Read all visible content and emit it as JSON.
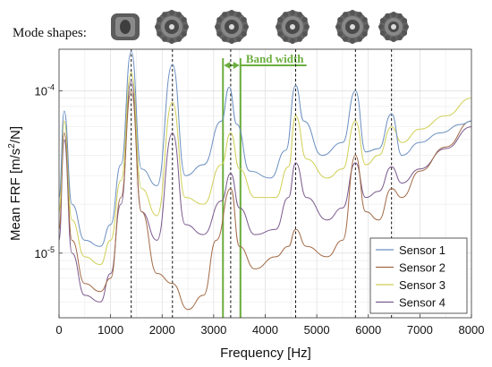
{
  "chart_data": {
    "type": "line",
    "mode_shapes_label": "Mode shapes:",
    "xlabel": "Frequency [Hz]",
    "ylabel_main": "Mean FRF [m/s",
    "ylabel_sup": "2",
    "ylabel_tail": "/N]",
    "xlim": [
      0,
      8000
    ],
    "ylim": [
      4e-06,
      0.00018
    ],
    "yscale": "log",
    "grid": true,
    "legend_position": "lower-right",
    "x_ticks": [
      0,
      1000,
      2000,
      3000,
      4000,
      5000,
      6000,
      7000,
      8000
    ],
    "x_tick_labels": [
      "0",
      "1000",
      "2000",
      "3000",
      "4000",
      "5000",
      "6000",
      "7000",
      "8000"
    ],
    "y_tick_labels": [
      {
        "value": 0.0001,
        "base": "10",
        "exp": "-4"
      },
      {
        "value": 1e-05,
        "base": "10",
        "exp": "-5"
      }
    ],
    "mode_frequencies": [
      1400,
      2200,
      3330,
      4590,
      5750,
      6450
    ],
    "band": {
      "label": "Band width",
      "low": 3180,
      "high": 3520
    },
    "colors": {
      "sensor1": "#6b8fc0",
      "sensor2": "#a26a46",
      "sensor3": "#cfcf56",
      "sensor4": "#7b5a8e",
      "band": "#6cae3e"
    },
    "series": [
      {
        "name": "Sensor 1",
        "color": "#6b8fc0",
        "points": [
          [
            0,
            2.2e-05
          ],
          [
            100,
            7.5e-05
          ],
          [
            250,
            2e-05
          ],
          [
            500,
            1.2e-05
          ],
          [
            800,
            1.1e-05
          ],
          [
            1000,
            1.5e-05
          ],
          [
            1200,
            3.5e-05
          ],
          [
            1400,
            0.000175
          ],
          [
            1600,
            3.3e-05
          ],
          [
            1900,
            2.6e-05
          ],
          [
            2200,
            0.000145
          ],
          [
            2450,
            3e-05
          ],
          [
            2800,
            3.5e-05
          ],
          [
            3150,
            6.5e-05
          ],
          [
            3300,
            0.000105
          ],
          [
            3450,
            6.2e-05
          ],
          [
            3700,
            3.2e-05
          ],
          [
            4100,
            2.9e-05
          ],
          [
            4400,
            4.3e-05
          ],
          [
            4590,
            0.000108
          ],
          [
            4750,
            6.5e-05
          ],
          [
            5100,
            4e-05
          ],
          [
            5500,
            4.8e-05
          ],
          [
            5750,
            0.0001
          ],
          [
            5950,
            4.2e-05
          ],
          [
            6200,
            4.4e-05
          ],
          [
            6450,
            7.2e-05
          ],
          [
            6650,
            4e-05
          ],
          [
            7000,
            4.8e-05
          ],
          [
            7400,
            5.5e-05
          ],
          [
            7800,
            6.2e-05
          ],
          [
            8000,
            6.5e-05
          ]
        ]
      },
      {
        "name": "Sensor 2",
        "color": "#a26a46",
        "points": [
          [
            0,
            1.4e-05
          ],
          [
            100,
            5.5e-05
          ],
          [
            250,
            1.2e-05
          ],
          [
            500,
            6.5e-06
          ],
          [
            800,
            5.8e-06
          ],
          [
            1000,
            7e-06
          ],
          [
            1200,
            2.2e-05
          ],
          [
            1400,
            0.0001
          ],
          [
            1600,
            1.8e-05
          ],
          [
            1900,
            7.5e-06
          ],
          [
            2200,
            6.5e-06
          ],
          [
            2500,
            4.5e-06
          ],
          [
            2800,
            5.5e-06
          ],
          [
            3050,
            1.2e-05
          ],
          [
            3330,
            2.5e-05
          ],
          [
            3500,
            1.1e-05
          ],
          [
            3800,
            8e-06
          ],
          [
            4200,
            9.5e-06
          ],
          [
            4450,
            1.1e-05
          ],
          [
            4590,
            1.4e-05
          ],
          [
            4800,
            1.1e-05
          ],
          [
            5200,
            9.5e-06
          ],
          [
            5500,
            1.2e-05
          ],
          [
            5750,
            4e-05
          ],
          [
            5950,
            1.8e-05
          ],
          [
            6200,
            1.6e-05
          ],
          [
            6450,
            2.5e-05
          ],
          [
            6650,
            2.2e-05
          ],
          [
            7000,
            3.2e-05
          ],
          [
            7500,
            4.5e-05
          ],
          [
            8000,
            6.5e-05
          ]
        ]
      },
      {
        "name": "Sensor 3",
        "color": "#cfcf56",
        "points": [
          [
            0,
            1.8e-05
          ],
          [
            100,
            6.5e-05
          ],
          [
            250,
            1.6e-05
          ],
          [
            500,
            9.5e-06
          ],
          [
            800,
            8.5e-06
          ],
          [
            1000,
            1.2e-05
          ],
          [
            1200,
            2.8e-05
          ],
          [
            1400,
            0.00013
          ],
          [
            1600,
            2.5e-05
          ],
          [
            1900,
            1.7e-05
          ],
          [
            2200,
            8.5e-05
          ],
          [
            2450,
            2.2e-05
          ],
          [
            2800,
            2e-05
          ],
          [
            3150,
            3.5e-05
          ],
          [
            3330,
            5.5e-05
          ],
          [
            3500,
            3.3e-05
          ],
          [
            3800,
            2.2e-05
          ],
          [
            4200,
            2.2e-05
          ],
          [
            4450,
            3.4e-05
          ],
          [
            4590,
            7e-05
          ],
          [
            4800,
            3.8e-05
          ],
          [
            5200,
            2.9e-05
          ],
          [
            5500,
            3.3e-05
          ],
          [
            5750,
            6.5e-05
          ],
          [
            5950,
            3.5e-05
          ],
          [
            6200,
            4e-05
          ],
          [
            6450,
            6e-05
          ],
          [
            6650,
            4.8e-05
          ],
          [
            7000,
            5.8e-05
          ],
          [
            7500,
            7e-05
          ],
          [
            8000,
            9e-05
          ]
        ]
      },
      {
        "name": "Sensor 4",
        "color": "#7b5a8e",
        "points": [
          [
            0,
            1.2e-05
          ],
          [
            100,
            5e-05
          ],
          [
            250,
            1e-05
          ],
          [
            500,
            5.5e-06
          ],
          [
            800,
            5e-06
          ],
          [
            1000,
            7.5e-06
          ],
          [
            1200,
            2e-05
          ],
          [
            1400,
            0.000115
          ],
          [
            1600,
            1.8e-05
          ],
          [
            1900,
            1.2e-05
          ],
          [
            2200,
            5.5e-05
          ],
          [
            2450,
            1.5e-05
          ],
          [
            2800,
            1.3e-05
          ],
          [
            3150,
            2.1e-05
          ],
          [
            3330,
            3.1e-05
          ],
          [
            3500,
            1.9e-05
          ],
          [
            3800,
            1.3e-05
          ],
          [
            4200,
            1.4e-05
          ],
          [
            4450,
            2.2e-05
          ],
          [
            4590,
            3.6e-05
          ],
          [
            4800,
            2.2e-05
          ],
          [
            5200,
            1.6e-05
          ],
          [
            5500,
            1.9e-05
          ],
          [
            5750,
            3.6e-05
          ],
          [
            5950,
            2.2e-05
          ],
          [
            6200,
            2.4e-05
          ],
          [
            6450,
            3.4e-05
          ],
          [
            6650,
            2.7e-05
          ],
          [
            7000,
            3.3e-05
          ],
          [
            7500,
            4.4e-05
          ],
          [
            8000,
            6e-05
          ]
        ]
      }
    ]
  }
}
